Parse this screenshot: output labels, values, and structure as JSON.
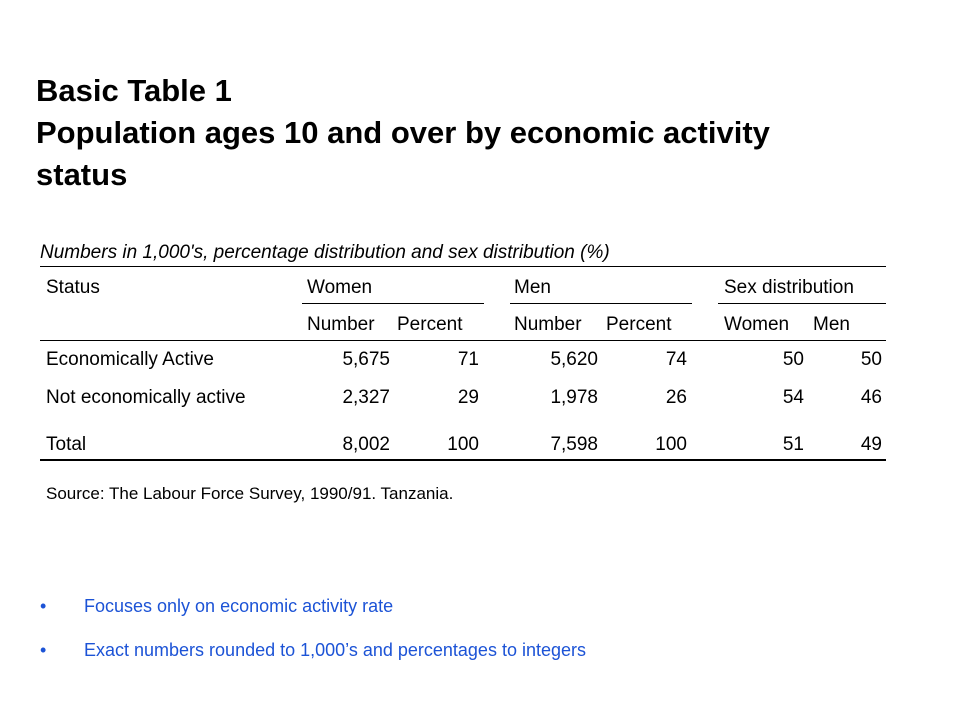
{
  "title": {
    "line1": "Basic Table 1",
    "line2": "Population ages 10 and over by economic activity",
    "line3": "status"
  },
  "table": {
    "caption": "Numbers in 1,000's, percentage distribution and sex distribution (%)",
    "headers": {
      "status": "Status",
      "women": "Women",
      "men": "Men",
      "sex_distribution": "Sex distribution",
      "number": "Number",
      "percent": "Percent",
      "sd_women": "Women",
      "sd_men": "Men"
    },
    "rows": [
      {
        "status": "Economically Active",
        "women_number": "5,675",
        "women_percent": "71",
        "men_number": "5,620",
        "men_percent": "74",
        "sd_women": "50",
        "sd_men": "50"
      },
      {
        "status": "Not economically active",
        "women_number": "2,327",
        "women_percent": "29",
        "men_number": "1,978",
        "men_percent": "26",
        "sd_women": "54",
        "sd_men": "46"
      },
      {
        "status": "Total",
        "women_number": "8,002",
        "women_percent": "100",
        "men_number": "7,598",
        "men_percent": "100",
        "sd_women": "51",
        "sd_men": "49"
      }
    ],
    "source": "Source: The Labour Force Survey, 1990/91. Tanzania."
  },
  "bullets": [
    {
      "marker": "•",
      "text": "Focuses only on economic activity rate"
    },
    {
      "marker": "•",
      "text": "Exact numbers rounded to 1,000’s and percentages to integers"
    }
  ]
}
